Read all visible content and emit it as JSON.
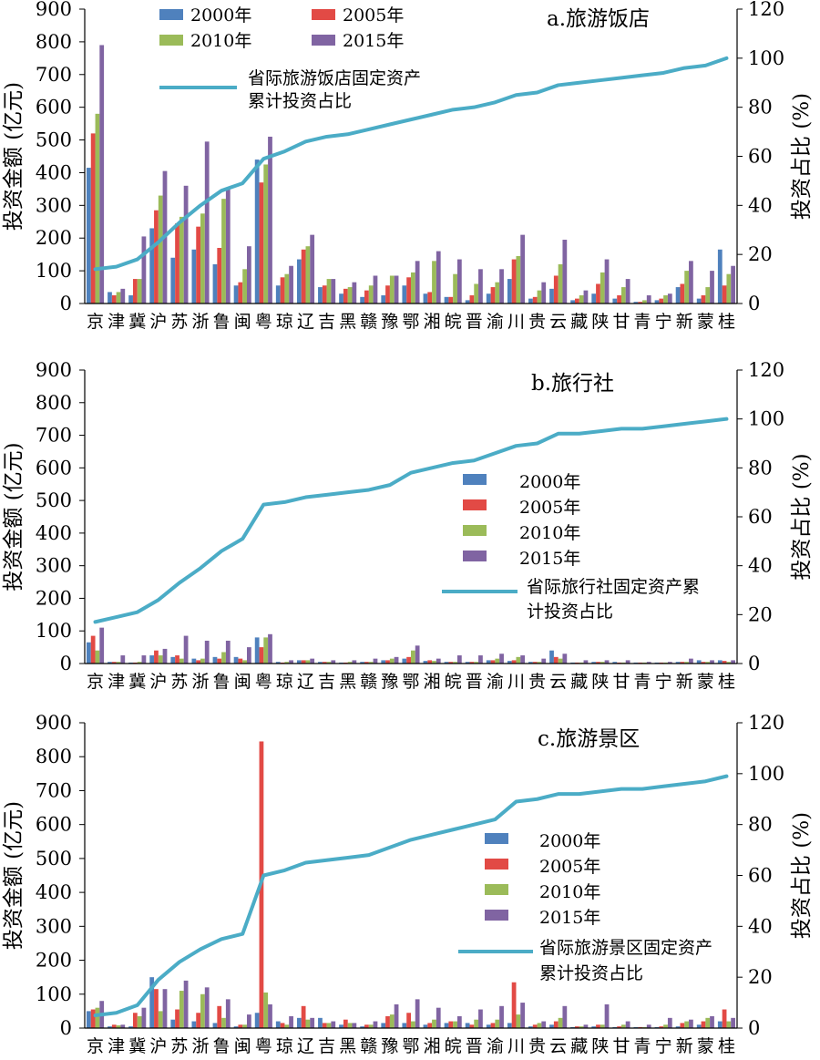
{
  "colors": {
    "y2000": "#4F81BD",
    "y2005": "#E24A45",
    "y2010": "#9BBB59",
    "y2015": "#8064A2",
    "cumulative": "#4BACC6"
  },
  "chart_data": [
    {
      "type": "bar",
      "title": "a.旅游饭店",
      "ylabel": "投资金额 (亿元)",
      "y2label": "投资占比 (%)",
      "ylim": [
        0,
        900
      ],
      "y2lim": [
        0,
        120
      ],
      "yticks": [
        "0",
        "100",
        "200",
        "300",
        "400",
        "500",
        "600",
        "700",
        "800",
        "900"
      ],
      "y2ticks": [
        "0",
        "20",
        "40",
        "60",
        "80",
        "100",
        "120"
      ],
      "legend_layout": "top",
      "categories": [
        "京",
        "津",
        "冀",
        "沪",
        "苏",
        "浙",
        "鲁",
        "闽",
        "粤",
        "琼",
        "辽",
        "吉",
        "黑",
        "赣",
        "豫",
        "鄂",
        "湘",
        "皖",
        "晋",
        "渝",
        "川",
        "贵",
        "云",
        "藏",
        "陕",
        "甘",
        "青",
        "宁",
        "新",
        "蒙",
        "桂"
      ],
      "series": [
        {
          "name": "2000年",
          "values": [
            415,
            35,
            25,
            230,
            140,
            165,
            120,
            55,
            440,
            55,
            135,
            50,
            30,
            20,
            25,
            55,
            30,
            20,
            10,
            30,
            75,
            15,
            45,
            10,
            30,
            15,
            5,
            10,
            50,
            15,
            165
          ]
        },
        {
          "name": "2005年",
          "values": [
            520,
            25,
            75,
            285,
            245,
            235,
            170,
            65,
            370,
            80,
            165,
            55,
            45,
            40,
            55,
            80,
            35,
            20,
            25,
            50,
            135,
            20,
            85,
            15,
            60,
            25,
            5,
            15,
            60,
            25,
            55
          ]
        },
        {
          "name": "2010年",
          "values": [
            580,
            35,
            75,
            330,
            265,
            275,
            320,
            105,
            425,
            90,
            175,
            75,
            50,
            55,
            85,
            95,
            130,
            90,
            60,
            65,
            145,
            40,
            120,
            25,
            95,
            50,
            10,
            25,
            100,
            50,
            90
          ]
        },
        {
          "name": "2015年",
          "values": [
            790,
            45,
            205,
            405,
            360,
            495,
            350,
            175,
            510,
            115,
            210,
            75,
            65,
            85,
            85,
            130,
            160,
            135,
            105,
            105,
            210,
            65,
            195,
            40,
            135,
            75,
            25,
            30,
            130,
            100,
            115
          ]
        }
      ],
      "cumulative": {
        "name": "省际旅游饭店固定资产累计投资占比",
        "values": [
          14,
          15,
          18,
          25,
          33,
          40,
          46,
          49,
          59,
          62,
          66,
          68,
          69,
          71,
          73,
          75,
          77,
          79,
          80,
          82,
          85,
          86,
          89,
          90,
          91,
          92,
          93,
          94,
          96,
          97,
          100
        ]
      }
    },
    {
      "type": "bar",
      "title": "b.旅行社",
      "ylabel": "投资金额 (亿元)",
      "y2label": "投资占比 (%)",
      "ylim": [
        0,
        900
      ],
      "y2lim": [
        0,
        120
      ],
      "yticks": [
        "0",
        "100",
        "200",
        "300",
        "400",
        "500",
        "600",
        "700",
        "800",
        "900"
      ],
      "y2ticks": [
        "0",
        "20",
        "40",
        "60",
        "80",
        "100",
        "120"
      ],
      "legend_layout": "vertical",
      "categories": [
        "京",
        "津",
        "冀",
        "沪",
        "苏",
        "浙",
        "鲁",
        "闽",
        "粤",
        "琼",
        "辽",
        "吉",
        "黑",
        "赣",
        "豫",
        "鄂",
        "湘",
        "皖",
        "晋",
        "渝",
        "川",
        "贵",
        "云",
        "藏",
        "陕",
        "甘",
        "青",
        "宁",
        "新",
        "蒙",
        "桂"
      ],
      "series": [
        {
          "name": "2000年",
          "values": [
            65,
            5,
            3,
            25,
            20,
            15,
            20,
            20,
            80,
            5,
            10,
            5,
            3,
            5,
            10,
            15,
            8,
            5,
            5,
            10,
            8,
            5,
            40,
            3,
            5,
            5,
            3,
            3,
            5,
            10,
            10
          ]
        },
        {
          "name": "2005年",
          "values": [
            85,
            5,
            3,
            40,
            25,
            10,
            15,
            15,
            50,
            3,
            10,
            5,
            3,
            5,
            10,
            20,
            10,
            5,
            5,
            10,
            10,
            5,
            20,
            3,
            5,
            3,
            3,
            3,
            5,
            5,
            8
          ]
        },
        {
          "name": "2010年",
          "values": [
            40,
            5,
            5,
            25,
            15,
            15,
            35,
            10,
            80,
            5,
            10,
            5,
            5,
            5,
            15,
            40,
            8,
            5,
            5,
            15,
            20,
            5,
            15,
            3,
            5,
            3,
            3,
            3,
            5,
            5,
            5
          ]
        },
        {
          "name": "2015年",
          "values": [
            110,
            25,
            25,
            45,
            85,
            70,
            70,
            50,
            90,
            10,
            15,
            10,
            10,
            15,
            20,
            55,
            15,
            25,
            25,
            30,
            25,
            15,
            30,
            10,
            10,
            10,
            5,
            5,
            15,
            10,
            10
          ]
        }
      ],
      "cumulative": {
        "name": "省际旅行社固定资产累计投资占比",
        "values": [
          17,
          19,
          21,
          26,
          33,
          39,
          46,
          51,
          65,
          66,
          68,
          69,
          70,
          71,
          73,
          78,
          80,
          82,
          83,
          86,
          89,
          90,
          94,
          94,
          95,
          96,
          96,
          97,
          98,
          99,
          100
        ]
      }
    },
    {
      "type": "bar",
      "title": "c.旅游景区",
      "ylabel": "投资金额 (亿元)",
      "y2label": "投资占比 (%)",
      "ylim": [
        0,
        900
      ],
      "y2lim": [
        0,
        120
      ],
      "yticks": [
        "0",
        "100",
        "200",
        "300",
        "400",
        "500",
        "600",
        "700",
        "800",
        "900"
      ],
      "y2ticks": [
        "0",
        "20",
        "40",
        "60",
        "80",
        "100",
        "120"
      ],
      "legend_layout": "vertical",
      "categories": [
        "京",
        "津",
        "冀",
        "沪",
        "苏",
        "浙",
        "鲁",
        "闽",
        "粤",
        "琼",
        "辽",
        "吉",
        "黑",
        "赣",
        "豫",
        "鄂",
        "湘",
        "皖",
        "晋",
        "渝",
        "川",
        "贵",
        "云",
        "藏",
        "陕",
        "甘",
        "青",
        "宁",
        "新",
        "蒙",
        "桂"
      ],
      "series": [
        {
          "name": "2000年",
          "values": [
            50,
            5,
            5,
            150,
            25,
            20,
            15,
            5,
            45,
            20,
            30,
            30,
            10,
            5,
            15,
            15,
            10,
            15,
            15,
            10,
            15,
            5,
            10,
            3,
            5,
            3,
            3,
            3,
            5,
            10,
            20
          ]
        },
        {
          "name": "2005年",
          "values": [
            55,
            10,
            45,
            115,
            55,
            45,
            65,
            10,
            845,
            15,
            65,
            15,
            25,
            10,
            35,
            45,
            15,
            20,
            10,
            15,
            135,
            10,
            20,
            5,
            10,
            5,
            3,
            5,
            15,
            20,
            55
          ]
        },
        {
          "name": "2010年",
          "values": [
            60,
            8,
            35,
            50,
            110,
            100,
            30,
            10,
            105,
            10,
            25,
            15,
            15,
            10,
            40,
            20,
            25,
            20,
            25,
            25,
            40,
            15,
            30,
            5,
            10,
            10,
            3,
            10,
            20,
            30,
            20
          ]
        },
        {
          "name": "2015年",
          "values": [
            80,
            10,
            60,
            115,
            140,
            120,
            85,
            40,
            70,
            35,
            30,
            20,
            15,
            20,
            70,
            85,
            60,
            35,
            55,
            65,
            75,
            20,
            65,
            10,
            70,
            20,
            10,
            30,
            25,
            35,
            30
          ]
        }
      ],
      "cumulative": {
        "name": "省际旅游景区固定资产累计投资占比",
        "values": [
          5,
          6,
          9,
          19,
          26,
          31,
          35,
          37,
          60,
          62,
          65,
          66,
          67,
          68,
          71,
          74,
          76,
          78,
          80,
          82,
          89,
          90,
          92,
          92,
          93,
          94,
          94,
          95,
          96,
          97,
          99
        ]
      }
    }
  ]
}
